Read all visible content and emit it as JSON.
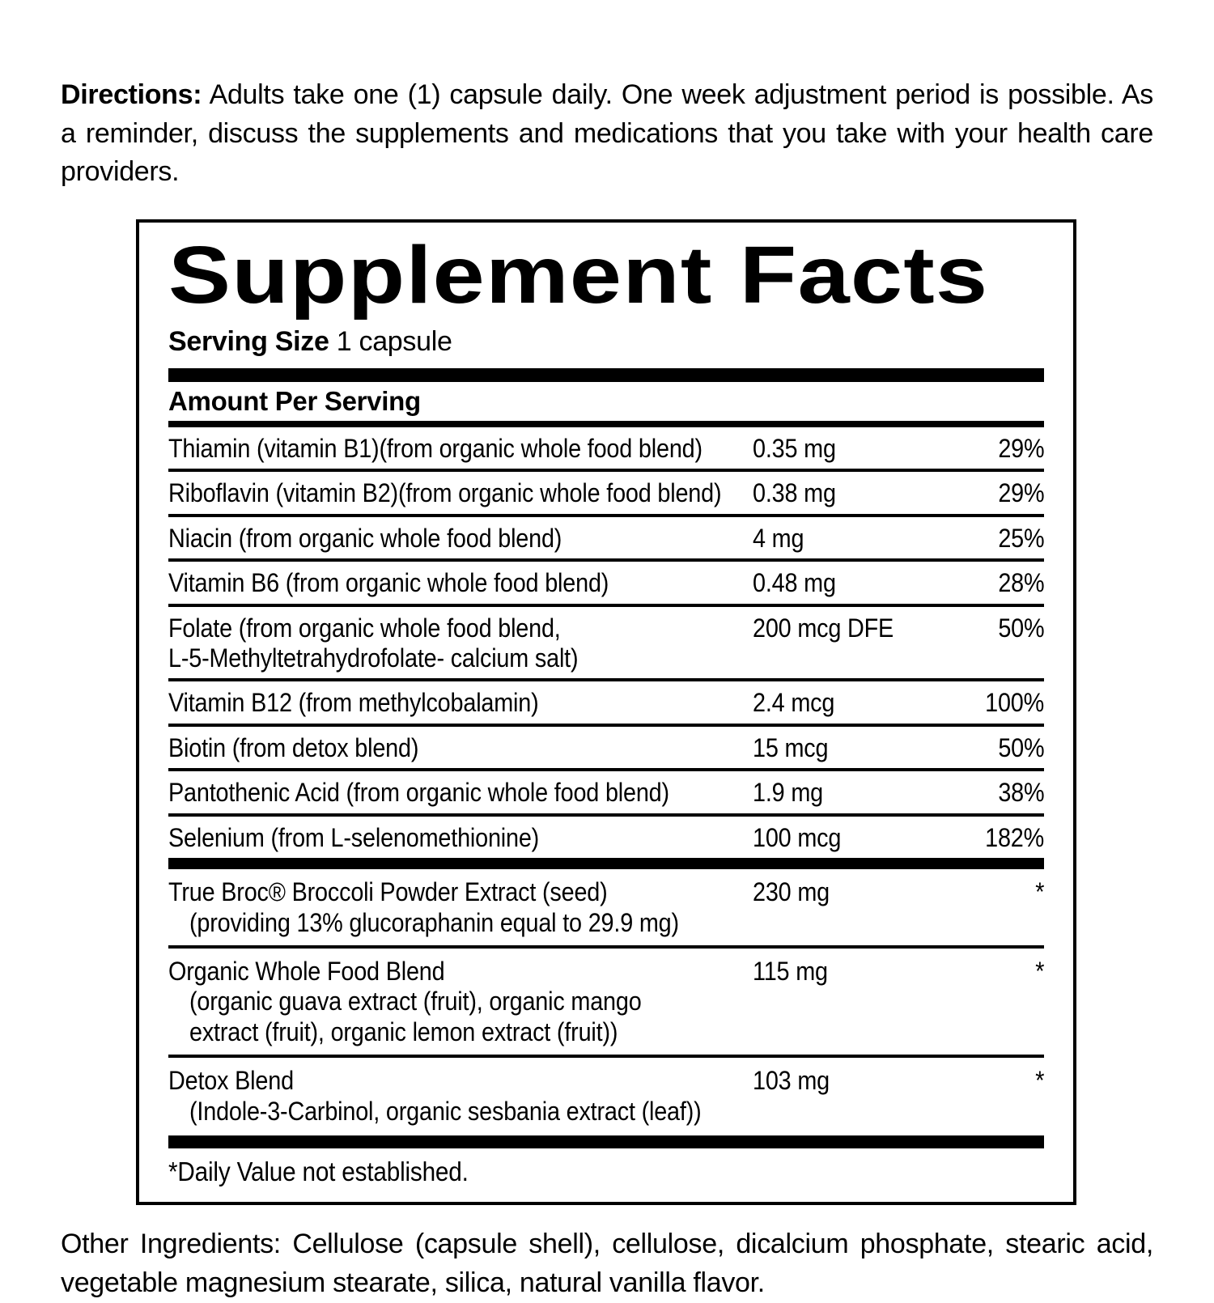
{
  "directions": {
    "label": "Directions:",
    "text": " Adults take one (1) capsule daily. One week adjustment period is possible. As a reminder, discuss the supplements and medications that you take with your health care providers."
  },
  "supplement_facts": {
    "title": "Supplement Facts",
    "serving_size": {
      "label": "Serving Size",
      "value": " 1 capsule"
    },
    "column_header": "Amount Per Serving",
    "nutrients": [
      {
        "name": "Thiamin (vitamin B1)(from organic whole food blend)",
        "amount": "0.35 mg",
        "daily_value": "29%"
      },
      {
        "name": "Riboflavin (vitamin B2)(from organic whole food blend)",
        "amount": "0.38 mg",
        "daily_value": "29%"
      },
      {
        "name": "Niacin (from organic whole food blend)",
        "amount": "4 mg",
        "daily_value": "25%"
      },
      {
        "name": "Vitamin B6 (from organic whole food blend)",
        "amount": "0.48 mg",
        "daily_value": "28%"
      },
      {
        "name": "Folate (from organic whole food blend,",
        "name2": "L-5-Methyltetrahydrofolate- calcium salt)",
        "amount": "200 mcg DFE",
        "daily_value": "50%"
      },
      {
        "name": "Vitamin B12 (from methylcobalamin)",
        "amount": "2.4 mcg",
        "daily_value": "100%"
      },
      {
        "name": "Biotin (from detox blend)",
        "amount": "15 mcg",
        "daily_value": "50%"
      },
      {
        "name": "Pantothenic Acid (from organic whole food blend)",
        "amount": "1.9 mg",
        "daily_value": "38%"
      },
      {
        "name": "Selenium (from L-selenomethionine)",
        "amount": "100 mcg",
        "daily_value": "182%"
      }
    ],
    "blends": [
      {
        "name": "True Broc® Broccoli Powder Extract (seed)",
        "detail": "(providing 13% glucoraphanin equal to 29.9 mg)",
        "amount": "230 mg",
        "daily_value": "*"
      },
      {
        "name": "Organic Whole Food Blend",
        "detail": "(organic guava extract (fruit), organic mango",
        "detail2": "extract (fruit), organic lemon extract (fruit))",
        "amount": "115 mg",
        "daily_value": "*"
      },
      {
        "name": "Detox Blend",
        "detail": "(Indole-3-Carbinol, organic sesbania extract (leaf))",
        "amount": "103 mg",
        "daily_value": "*"
      }
    ],
    "footnote": "*Daily Value not established."
  },
  "other_ingredients": {
    "label": "Other Ingredients:",
    "text": " Cellulose (capsule shell), cellulose, dicalcium phosphate, stearic acid, vegetable magnesium stearate, silica, natural vanilla flavor."
  },
  "colors": {
    "text": "#000000",
    "background": "#ffffff",
    "rule": "#000000"
  }
}
